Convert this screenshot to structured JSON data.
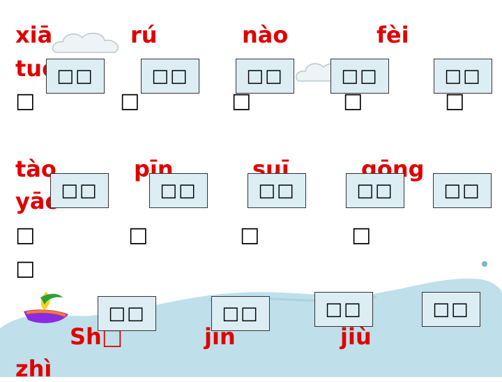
{
  "row1": {
    "pinyin": [
      "xiā",
      "rú",
      "nào",
      "fèi",
      "tuō"
    ],
    "placeholders": [
      "□",
      "□",
      "□",
      "□",
      "□"
    ]
  },
  "row2": {
    "pinyin": [
      "tào",
      "pīn",
      "suī",
      "gōng",
      "yāo"
    ],
    "placeholders": [
      "□",
      "□",
      "□",
      "□",
      "□"
    ]
  },
  "row3": {
    "pinyin": [
      "Shū",
      "jìn",
      "jiù",
      "zhì"
    ],
    "placeholder": "□"
  },
  "cards": [
    "□□",
    "□□",
    "□□",
    "□□",
    "□□",
    "□□",
    "□□",
    "□□",
    "□□",
    "□□",
    "□□",
    "□□",
    "□□",
    "□□"
  ],
  "colors": {
    "pinyin": "#e00000",
    "card_fill": "#dceef4",
    "wave": "#bfe0ea"
  }
}
